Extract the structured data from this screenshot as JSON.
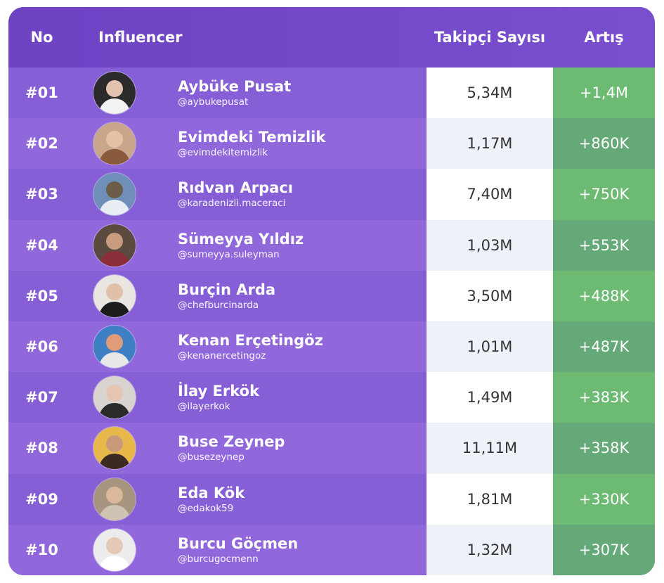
{
  "header": {
    "no": "No",
    "influencer": "Influencer",
    "followers": "Takipçi Sayısı",
    "increase": "Artış"
  },
  "rows": [
    {
      "rank": "#01",
      "name": "Aybüke Pusat",
      "handle": "@aybukepusat",
      "followers": "5,34M",
      "increase": "+1,4M",
      "avatar": {
        "bg": "#2b2b2b",
        "skin": "#e3c3b0",
        "cloth": "#f2f2f2"
      }
    },
    {
      "rank": "#02",
      "name": "Evimdeki Temizlik",
      "handle": "@evimdekitemizlik",
      "followers": "1,17M",
      "increase": "+860K",
      "avatar": {
        "bg": "#c9a58c",
        "skin": "#e6c1a6",
        "cloth": "#8a5a3c"
      }
    },
    {
      "rank": "#03",
      "name": "Rıdvan Arpacı",
      "handle": "@karadenizli.maceraci",
      "followers": "7,40M",
      "increase": "+750K",
      "avatar": {
        "bg": "#6f8fb8",
        "skin": "#6b5d4a",
        "cloth": "#e8eef4"
      }
    },
    {
      "rank": "#04",
      "name": "Sümeyya Yıldız",
      "handle": "@sumeyya.suleyman",
      "followers": "1,03M",
      "increase": "+553K",
      "avatar": {
        "bg": "#5a4a3f",
        "skin": "#c99b7f",
        "cloth": "#8b2e3a"
      }
    },
    {
      "rank": "#05",
      "name": "Burçin Arda",
      "handle": "@chefburcinarda",
      "followers": "3,50M",
      "increase": "+488K",
      "avatar": {
        "bg": "#e9e6e1",
        "skin": "#e0c0a8",
        "cloth": "#1c1c1c"
      }
    },
    {
      "rank": "#06",
      "name": "Kenan Erçetingöz",
      "handle": "@kenanercetingoz",
      "followers": "1,01M",
      "increase": "+487K",
      "avatar": {
        "bg": "#3f7fc4",
        "skin": "#e09c78",
        "cloth": "#e8e8e8"
      }
    },
    {
      "rank": "#07",
      "name": "İlay Erkök",
      "handle": "@ilayerkok",
      "followers": "1,49M",
      "increase": "+383K",
      "avatar": {
        "bg": "#d9d4cf",
        "skin": "#e4c6b2",
        "cloth": "#2a2a2a"
      }
    },
    {
      "rank": "#08",
      "name": "Buse Zeynep",
      "handle": "@busezeynep",
      "followers": "11,11M",
      "increase": "+358K",
      "avatar": {
        "bg": "#e8b84a",
        "skin": "#c99a7a",
        "cloth": "#3a2a22"
      }
    },
    {
      "rank": "#09",
      "name": "Eda Kök",
      "handle": "@edakok59",
      "followers": "1,81M",
      "increase": "+330K",
      "avatar": {
        "bg": "#a8957f",
        "skin": "#d9b89c",
        "cloth": "#cfc3b3"
      }
    },
    {
      "rank": "#10",
      "name": "Burcu Göçmen",
      "handle": "@burcugocmenn",
      "followers": "1,32M",
      "increase": "+307K",
      "avatar": {
        "bg": "#ececec",
        "skin": "#e4c9b6",
        "cloth": "#ffffff"
      }
    }
  ]
}
